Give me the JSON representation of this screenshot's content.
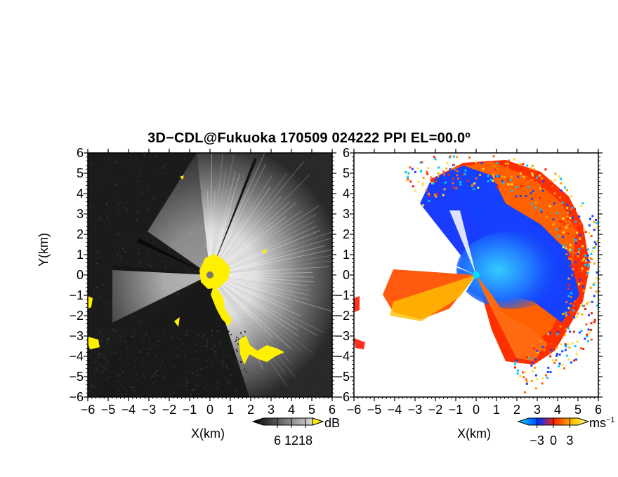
{
  "title": "3D−CDL@Fukuoka 170509 024222 PPI EL=00.0º",
  "ylabel": "Y(km)",
  "xlabel": "X(km)",
  "chart_data": [
    {
      "type": "heatmap",
      "name": "reflectivity-ppi",
      "xlabel": "X(km)",
      "ylabel": "Y(km)",
      "xlim": [
        -6,
        6
      ],
      "ylim": [
        -6,
        6
      ],
      "ticks": [
        "−6",
        "−5",
        "−4",
        "−3",
        "−2",
        "−1",
        "0",
        "1",
        "2",
        "3",
        "4",
        "5",
        "6"
      ],
      "colorbar": {
        "unit": "dB",
        "tick_labels": [
          "6",
          "12",
          "18"
        ],
        "ticks": [
          6,
          12,
          18
        ],
        "range": [
          0,
          21
        ],
        "colors": [
          "#000000",
          "#ffffff"
        ],
        "saturation_color": "#ffef00"
      },
      "grid": false
    },
    {
      "type": "heatmap",
      "name": "doppler-velocity-ppi",
      "xlabel": "X(km)",
      "xlim": [
        -6,
        6
      ],
      "ylim": [
        -6,
        6
      ],
      "ticks": [
        "−6",
        "−5",
        "−4",
        "−3",
        "−2",
        "−1",
        "0",
        "1",
        "2",
        "3",
        "4",
        "5",
        "6"
      ],
      "colorbar": {
        "unit": "ms",
        "unit_exponent": "−1",
        "tick_labels": [
          "−3",
          "0",
          "3"
        ],
        "ticks": [
          -3,
          0,
          3
        ],
        "range": [
          -4.5,
          4.5
        ],
        "colors": [
          "#00dcff",
          "#0032ff",
          "#ff2000",
          "#ffcc00",
          "#fff8a0"
        ]
      },
      "grid": false
    }
  ]
}
